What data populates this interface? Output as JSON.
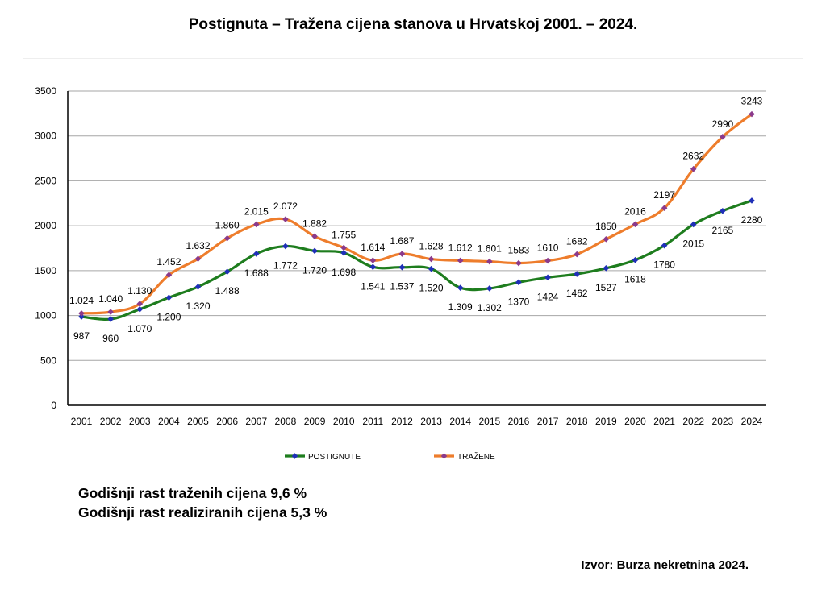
{
  "title": "Postignuta – Tražena cijena stanova u Hrvatskoj 2001. – 2024.",
  "notes": {
    "growth_asked": "Godišnji rast traženih cijena  9,6 %",
    "growth_realized": "Godišnji rast realiziranih cijena 5,3 %"
  },
  "source": "Izvor: Burza nekretnina 2024.",
  "chart_data": {
    "type": "line",
    "title": "Postignuta – Tražena cijena stanova u Hrvatskoj 2001. – 2024.",
    "categories": [
      "2001",
      "2002",
      "2003",
      "2004",
      "2005",
      "2006",
      "2007",
      "2008",
      "2009",
      "2010",
      "2011",
      "2012",
      "2013",
      "2014",
      "2015",
      "2016",
      "2017",
      "2018",
      "2019",
      "2020",
      "2021",
      "2022",
      "2023",
      "2024"
    ],
    "ylim": [
      0,
      3500
    ],
    "yticks": [
      0,
      500,
      1000,
      1500,
      2000,
      2500,
      3000,
      3500
    ],
    "grid": "horizontal",
    "legend": "bottom",
    "series": [
      {
        "name": "POSTIGNUTE",
        "color": "#1e7d1e",
        "marker_color": "#1f2fb8",
        "values": [
          987,
          960,
          1070,
          1200,
          1320,
          1488,
          1688,
          1772,
          1720,
          1698,
          1541,
          1537,
          1520,
          1309,
          1302,
          1370,
          1424,
          1462,
          1527,
          1618,
          1780,
          2015,
          2165,
          2280
        ],
        "labels": [
          "987",
          "960",
          "1.070",
          "1.200",
          "1.320",
          "1.488",
          "1.688",
          "1.772",
          "1.720",
          "1.698",
          "1.541",
          "1.537",
          "1.520",
          "1.309",
          "1.302",
          "1370",
          "1424",
          "1462",
          "1527",
          "1618",
          "1780",
          "2015",
          "2165",
          "2280"
        ]
      },
      {
        "name": "TRAŽENE",
        "color": "#ee7d2c",
        "marker_color": "#8b3a8b",
        "values": [
          1024,
          1040,
          1130,
          1452,
          1632,
          1860,
          2015,
          2072,
          1882,
          1755,
          1614,
          1687,
          1628,
          1612,
          1601,
          1583,
          1610,
          1682,
          1850,
          2016,
          2197,
          2632,
          2990,
          3243
        ],
        "labels": [
          "1.024",
          "1.040",
          "1.130",
          "1.452",
          "1.632",
          "1.860",
          "2.015",
          "2.072",
          "1.882",
          "1.755",
          "1.614",
          "1.687",
          "1.628",
          "1.612",
          "1.601",
          "1583",
          "1610",
          "1682",
          "1850",
          "2016",
          "2197",
          "2632",
          "2990",
          "3243"
        ]
      }
    ]
  }
}
